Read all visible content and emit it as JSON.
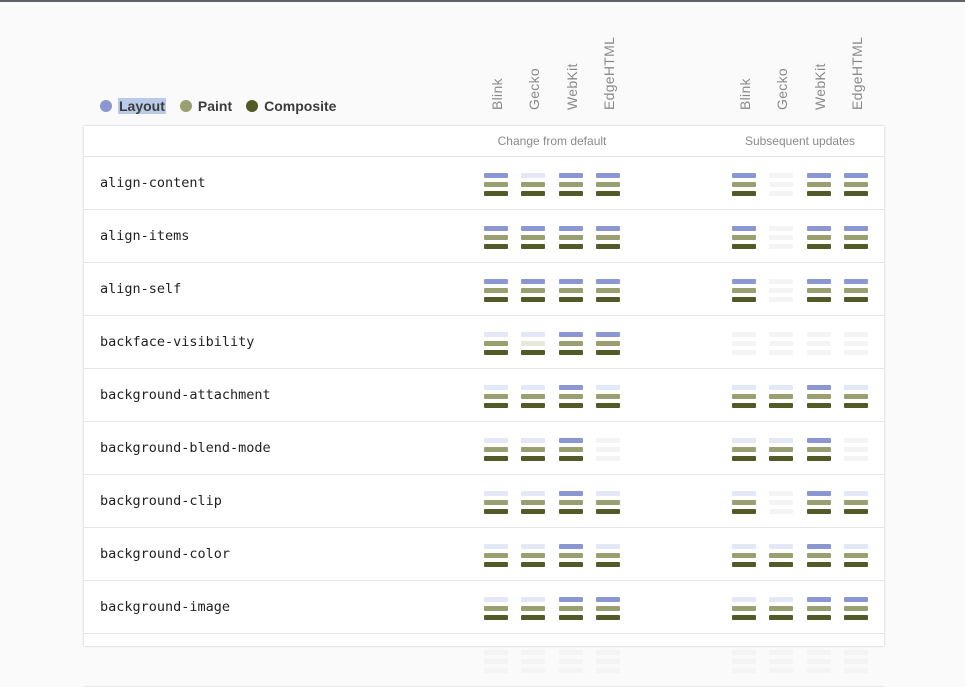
{
  "legend": {
    "items": [
      {
        "label": "Layout",
        "color": "#8b97d2",
        "selected": true
      },
      {
        "label": "Paint",
        "color": "#999f70",
        "selected": false
      },
      {
        "label": "Composite",
        "color": "#525a28",
        "selected": false
      }
    ]
  },
  "engines": [
    "Blink",
    "Gecko",
    "WebKit",
    "EdgeHTML"
  ],
  "groups": [
    {
      "title": "Change from default"
    },
    {
      "title": "Subsequent updates"
    }
  ],
  "colors": {
    "layout": "#8b97d2",
    "layout_off": "#e4e7f5",
    "paint": "#999f70",
    "paint_off": "#e8e8dc",
    "composite": "#525a28",
    "composite_off": "#f2f2f2",
    "none": "#f4f4f4"
  },
  "rows": [
    {
      "property": "align-content",
      "change": [
        "LPC",
        "PC",
        "LPC",
        "LPC"
      ],
      "update": [
        "LPC",
        "",
        "LPC",
        "LPC"
      ]
    },
    {
      "property": "align-items",
      "change": [
        "LPC",
        "LPC",
        "LPC",
        "LPC"
      ],
      "update": [
        "LPC",
        "",
        "LPC",
        "LPC"
      ]
    },
    {
      "property": "align-self",
      "change": [
        "LPC",
        "LPC",
        "LPC",
        "LPC"
      ],
      "update": [
        "LPC",
        "",
        "LPC",
        "LPC"
      ]
    },
    {
      "property": "backface-visibility",
      "change": [
        "PC",
        "C",
        "LPC",
        "LPC"
      ],
      "update": [
        "",
        "",
        "",
        ""
      ]
    },
    {
      "property": "background-attachment",
      "change": [
        "PC",
        "PC",
        "LPC",
        "PC"
      ],
      "update": [
        "PC",
        "PC",
        "LPC",
        "PC"
      ]
    },
    {
      "property": "background-blend-mode",
      "change": [
        "PC",
        "PC",
        "LPC",
        ""
      ],
      "update": [
        "PC",
        "PC",
        "LPC",
        ""
      ]
    },
    {
      "property": "background-clip",
      "change": [
        "PC",
        "PC",
        "LPC",
        "PC"
      ],
      "update": [
        "PC",
        "",
        "LPC",
        "PC"
      ]
    },
    {
      "property": "background-color",
      "change": [
        "PC",
        "PC",
        "LPC",
        "PC"
      ],
      "update": [
        "PC",
        "PC",
        "LPC",
        "PC"
      ]
    },
    {
      "property": "background-image",
      "change": [
        "PC",
        "PC",
        "LPC",
        "LPC"
      ],
      "update": [
        "PC",
        "PC",
        "LPC",
        "LPC"
      ]
    },
    {
      "property": "",
      "change": [
        "",
        "",
        "",
        ""
      ],
      "update": [
        "",
        "",
        "",
        ""
      ]
    }
  ]
}
